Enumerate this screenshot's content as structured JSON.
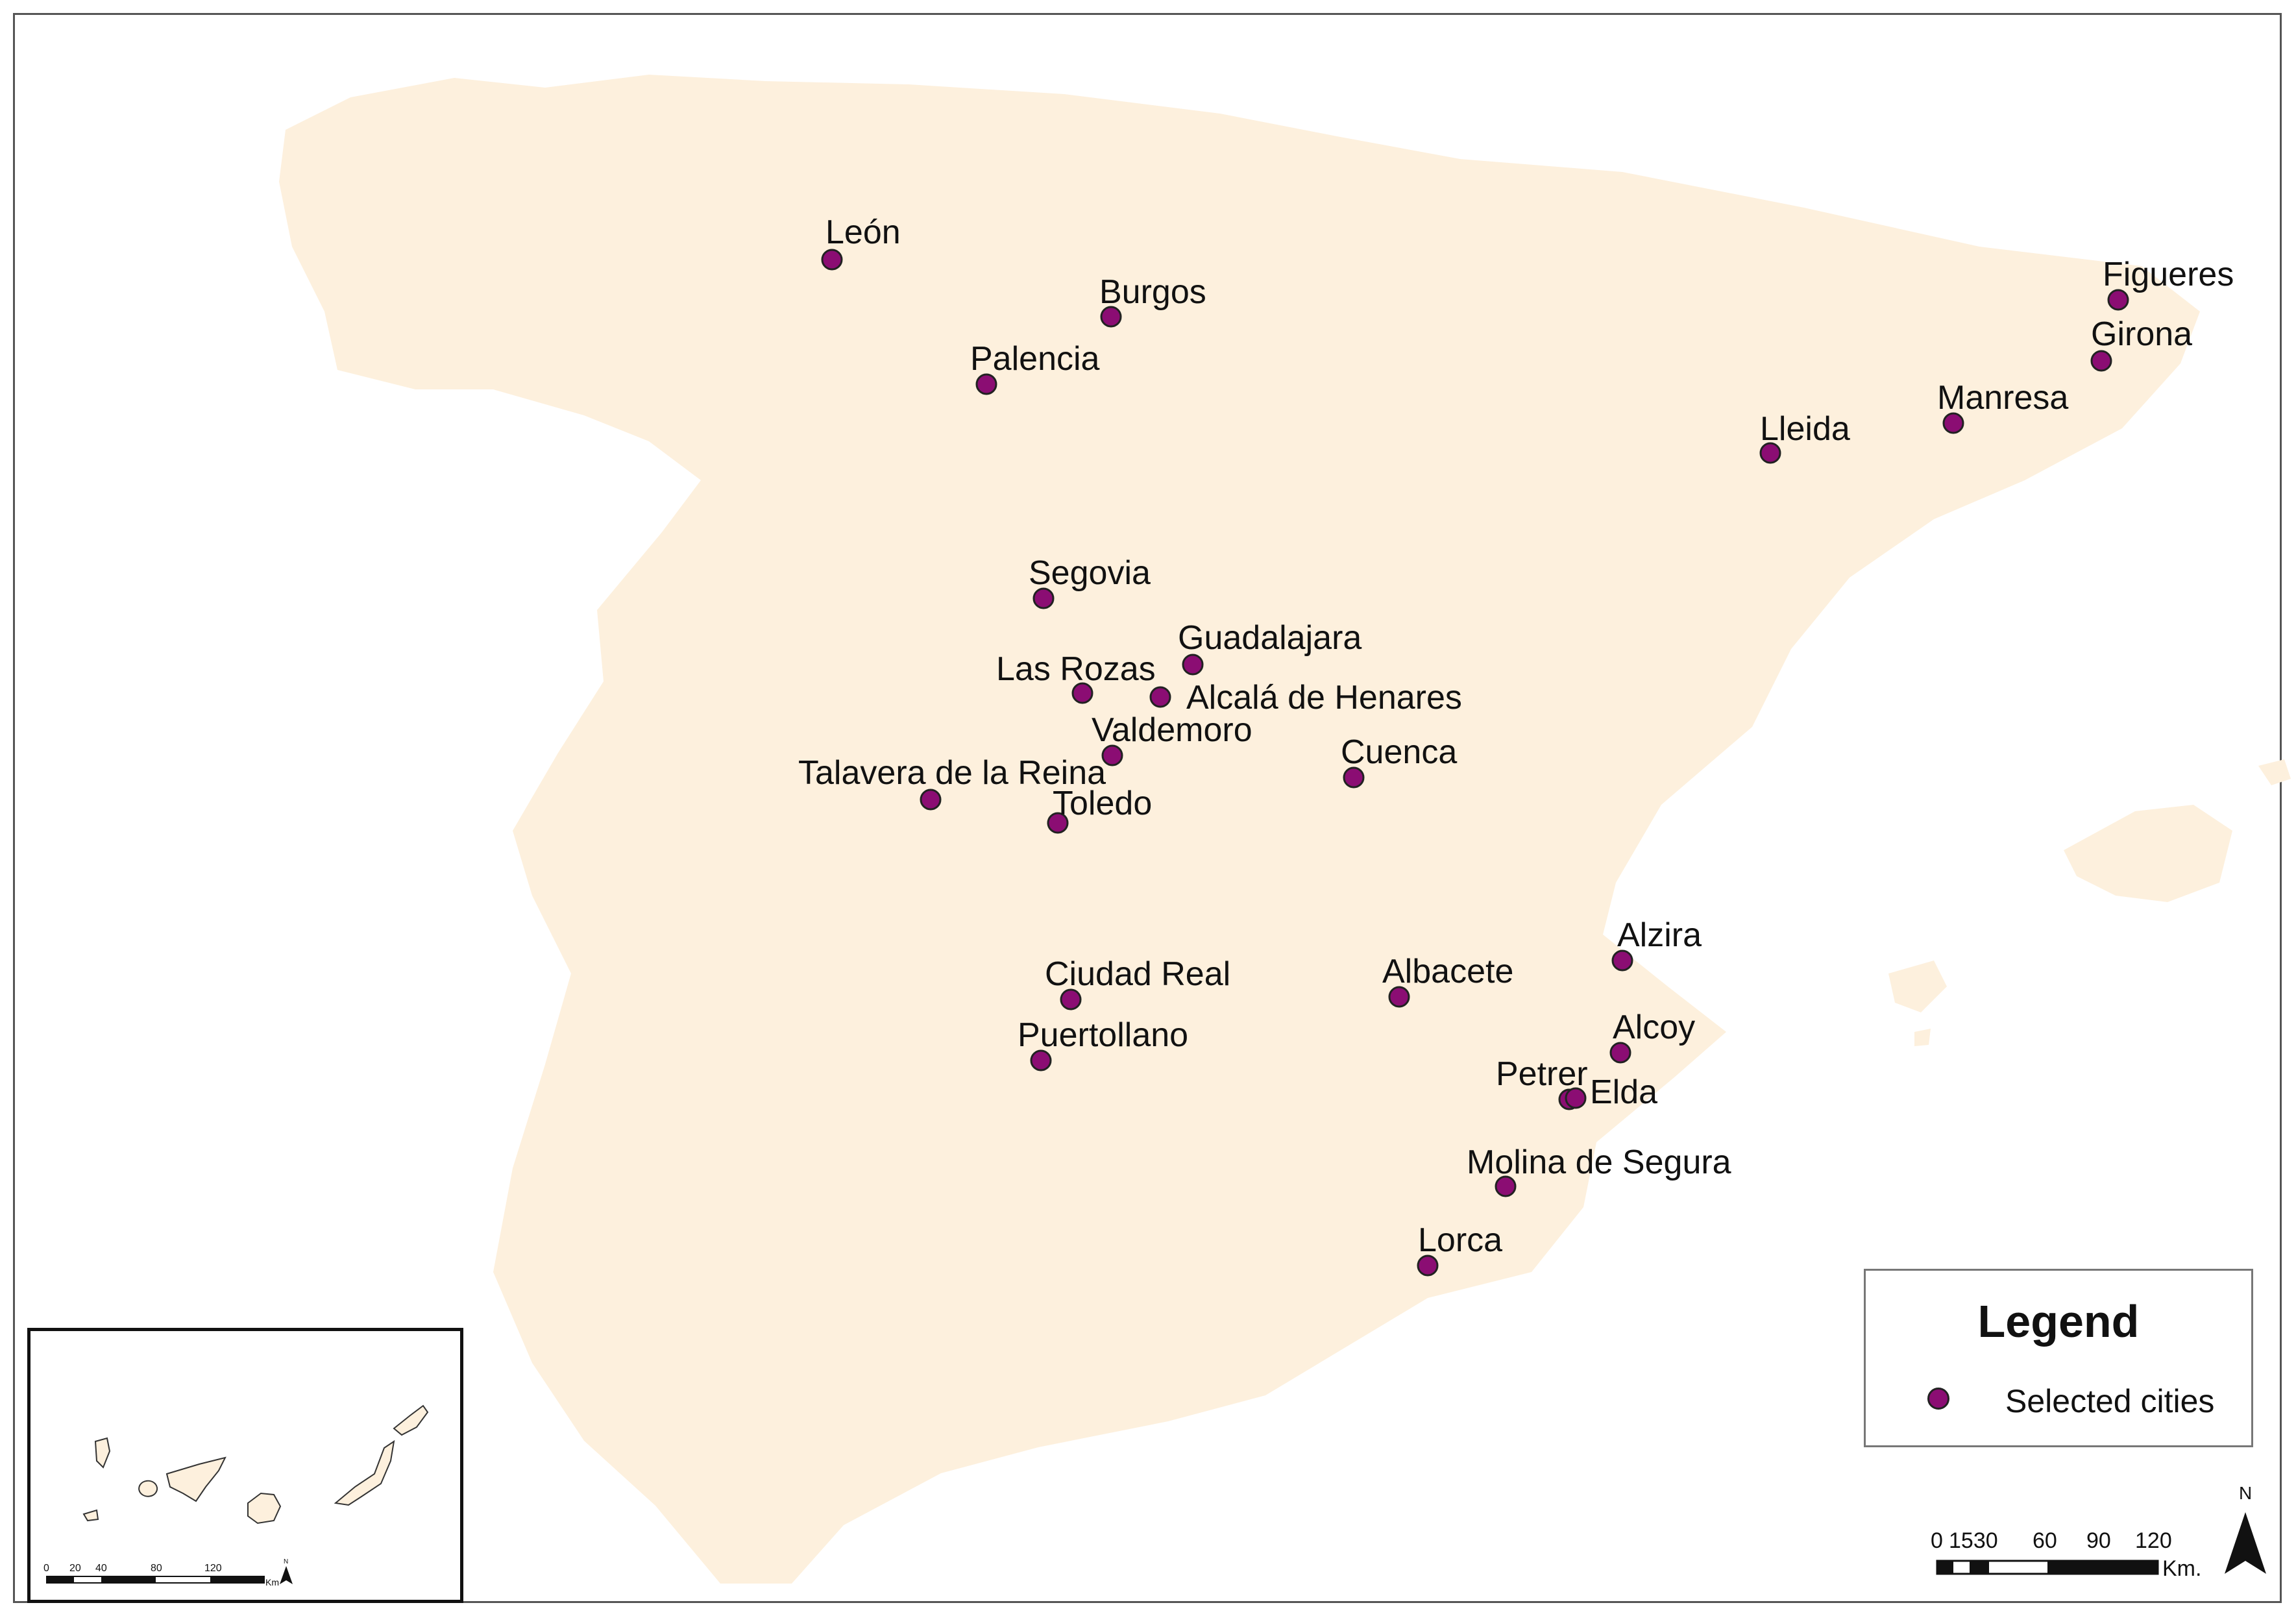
{
  "colors": {
    "land": "#fdf0dd",
    "city_point": "#8b0d73",
    "frame": "#555555"
  },
  "map": {
    "cities": [
      {
        "name": "León"
      },
      {
        "name": "Burgos"
      },
      {
        "name": "Palencia"
      },
      {
        "name": "Figueres"
      },
      {
        "name": "Girona"
      },
      {
        "name": "Manresa"
      },
      {
        "name": "Lleida"
      },
      {
        "name": "Segovia"
      },
      {
        "name": "Guadalajara"
      },
      {
        "name": "Las Rozas"
      },
      {
        "name": "Alcalá de Henares"
      },
      {
        "name": "Valdemoro"
      },
      {
        "name": "Talavera de la Reina"
      },
      {
        "name": "Toledo"
      },
      {
        "name": "Cuenca"
      },
      {
        "name": "Alzira"
      },
      {
        "name": "Ciudad Real"
      },
      {
        "name": "Albacete"
      },
      {
        "name": "Puertollano"
      },
      {
        "name": "Alcoy"
      },
      {
        "name": "Petrer"
      },
      {
        "name": "Elda"
      },
      {
        "name": "Molina de Segura"
      },
      {
        "name": "Lorca"
      }
    ]
  },
  "legend": {
    "title": "Legend",
    "item_label": "Selected cities"
  },
  "scale_bar": {
    "labels": [
      "0",
      "1530",
      "60",
      "90",
      "120"
    ],
    "unit": "Km.",
    "north": "N"
  },
  "inset": {
    "scale_labels": [
      "0",
      "20",
      "40",
      "80",
      "120"
    ],
    "unit": "Km",
    "north": "N"
  }
}
